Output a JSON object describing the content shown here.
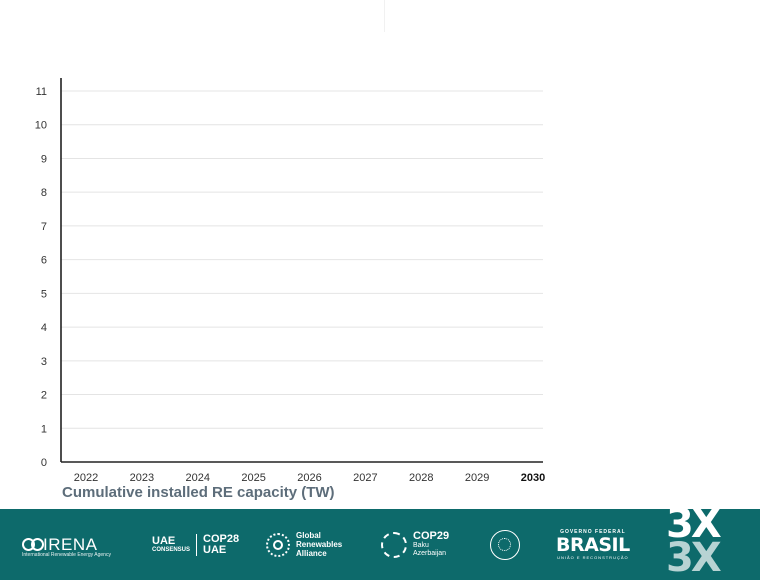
{
  "chart_data": {
    "type": "line",
    "title": "",
    "xlabel": "Cumulative installed RE capacity (TW)",
    "ylabel": "",
    "categories": [
      "2022",
      "2023",
      "2024",
      "2025",
      "2026",
      "2027",
      "2028",
      "2029",
      "2030"
    ],
    "highlight_category": "2030",
    "y_ticks": [
      "0",
      "1",
      "2",
      "3",
      "4",
      "5",
      "6",
      "7",
      "8",
      "9",
      "10",
      "11"
    ],
    "ylim": [
      0,
      11
    ],
    "grid": true,
    "series": []
  },
  "footer": {
    "logos": [
      {
        "id": "irena",
        "text": "IRENA",
        "sub": "International Renewable Energy Agency"
      },
      {
        "id": "uae",
        "line1": "UAE",
        "line2": "CONSENSUS",
        "line3": "COP28",
        "line4": "UAE"
      },
      {
        "id": "gra",
        "line1": "Global",
        "line2": "Renewables",
        "line3": "Alliance"
      },
      {
        "id": "cop29",
        "line1": "COP29",
        "line2": "Baku",
        "line3": "Azerbaijan"
      },
      {
        "id": "seal"
      },
      {
        "id": "brasil",
        "line1": "GOVERNO FEDERAL",
        "line2": "BRASIL",
        "line3": "UNIÃO E RECONSTRUÇÃO"
      },
      {
        "id": "3x",
        "text": "3X"
      }
    ],
    "background_color": "#0d6a6b"
  }
}
